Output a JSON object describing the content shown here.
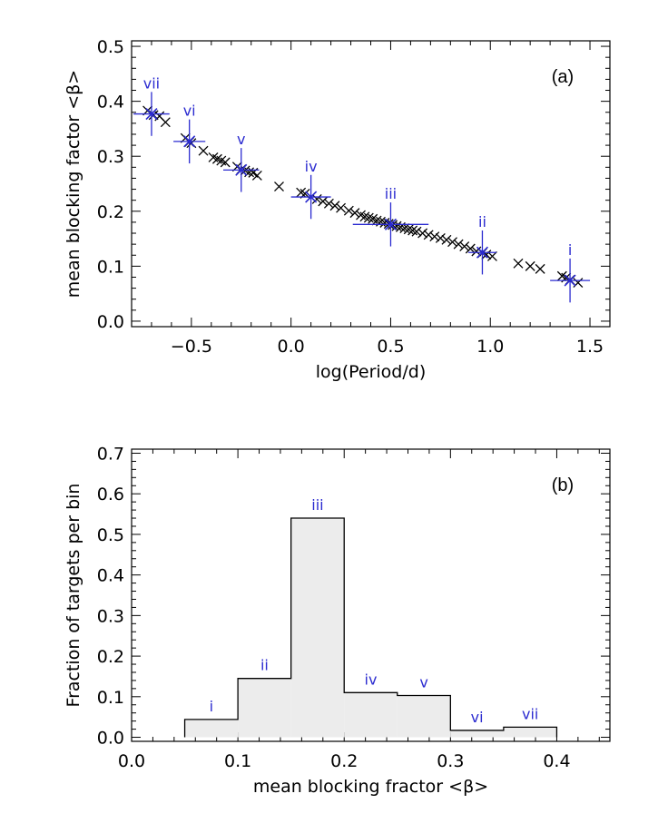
{
  "colors": {
    "annotation": "#2b2bd0",
    "points": "#000000",
    "hist_fill": "#ececec",
    "hist_edge": "#000000"
  },
  "chart_data": [
    {
      "type": "scatter",
      "panel_label": "(a)",
      "xlabel": "log(Period/d)",
      "ylabel": "mean blocking factor <β>",
      "xlim": [
        -0.8,
        1.6
      ],
      "ylim": [
        -0.01,
        0.51
      ],
      "xticks": [
        -0.5,
        0.0,
        0.5,
        1.0,
        1.5
      ],
      "xtick_labels": [
        "−0.5",
        "0.0",
        "0.5",
        "1.0",
        "1.5"
      ],
      "yticks": [
        0.0,
        0.1,
        0.2,
        0.3,
        0.4,
        0.5
      ],
      "ytick_labels": [
        "0.0",
        "0.1",
        "0.2",
        "0.3",
        "0.4",
        "0.5"
      ],
      "points": [
        [
          -0.72,
          0.383
        ],
        [
          -0.69,
          0.375
        ],
        [
          -0.66,
          0.373
        ],
        [
          -0.63,
          0.362
        ],
        [
          -0.53,
          0.333
        ],
        [
          -0.51,
          0.326
        ],
        [
          -0.5,
          0.324
        ],
        [
          -0.44,
          0.31
        ],
        [
          -0.39,
          0.298
        ],
        [
          -0.37,
          0.295
        ],
        [
          -0.35,
          0.292
        ],
        [
          -0.33,
          0.289
        ],
        [
          -0.27,
          0.281
        ],
        [
          -0.25,
          0.276
        ],
        [
          -0.23,
          0.274
        ],
        [
          -0.21,
          0.271
        ],
        [
          -0.19,
          0.27
        ],
        [
          -0.17,
          0.265
        ],
        [
          -0.06,
          0.245
        ],
        [
          0.05,
          0.234
        ],
        [
          0.07,
          0.232
        ],
        [
          0.1,
          0.226
        ],
        [
          0.13,
          0.222
        ],
        [
          0.16,
          0.218
        ],
        [
          0.19,
          0.214
        ],
        [
          0.22,
          0.21
        ],
        [
          0.25,
          0.206
        ],
        [
          0.29,
          0.201
        ],
        [
          0.32,
          0.197
        ],
        [
          0.35,
          0.193
        ],
        [
          0.37,
          0.19
        ],
        [
          0.39,
          0.188
        ],
        [
          0.41,
          0.186
        ],
        [
          0.43,
          0.183
        ],
        [
          0.45,
          0.181
        ],
        [
          0.47,
          0.179
        ],
        [
          0.49,
          0.177
        ],
        [
          0.51,
          0.175
        ],
        [
          0.53,
          0.173
        ],
        [
          0.55,
          0.171
        ],
        [
          0.57,
          0.169
        ],
        [
          0.59,
          0.167
        ],
        [
          0.61,
          0.165
        ],
        [
          0.63,
          0.163
        ],
        [
          0.66,
          0.16
        ],
        [
          0.69,
          0.157
        ],
        [
          0.72,
          0.154
        ],
        [
          0.75,
          0.151
        ],
        [
          0.78,
          0.148
        ],
        [
          0.81,
          0.144
        ],
        [
          0.84,
          0.14
        ],
        [
          0.87,
          0.136
        ],
        [
          0.9,
          0.132
        ],
        [
          0.93,
          0.127
        ],
        [
          0.96,
          0.124
        ],
        [
          0.98,
          0.121
        ],
        [
          1.01,
          0.118
        ],
        [
          1.14,
          0.105
        ],
        [
          1.2,
          0.1
        ],
        [
          1.25,
          0.095
        ],
        [
          1.36,
          0.082
        ],
        [
          1.38,
          0.079
        ],
        [
          1.4,
          0.075
        ],
        [
          1.44,
          0.07
        ]
      ],
      "bin_markers": [
        {
          "label": "vii",
          "x": -0.7,
          "y": 0.377,
          "xerr": 0.09,
          "yerr": 0.04
        },
        {
          "label": "vi",
          "x": -0.51,
          "y": 0.327,
          "xerr": 0.08,
          "yerr": 0.04
        },
        {
          "label": "v",
          "x": -0.25,
          "y": 0.275,
          "xerr": 0.09,
          "yerr": 0.04
        },
        {
          "label": "iv",
          "x": 0.1,
          "y": 0.226,
          "xerr": 0.1,
          "yerr": 0.04
        },
        {
          "label": "iii",
          "x": 0.5,
          "y": 0.176,
          "xerr": 0.19,
          "yerr": 0.04
        },
        {
          "label": "ii",
          "x": 0.96,
          "y": 0.125,
          "xerr": 0.07,
          "yerr": 0.04
        },
        {
          "label": "i",
          "x": 1.4,
          "y": 0.074,
          "xerr": 0.1,
          "yerr": 0.04
        }
      ]
    },
    {
      "type": "bar",
      "subtype": "step-histogram",
      "panel_label": "(b)",
      "xlabel": "mean blocking fractor <β>",
      "ylabel": "Fraction of targets per bin",
      "xlim": [
        0.0,
        0.45
      ],
      "ylim": [
        -0.01,
        0.71
      ],
      "xticks": [
        0.0,
        0.1,
        0.2,
        0.3,
        0.4
      ],
      "xtick_labels": [
        "0.0",
        "0.1",
        "0.2",
        "0.3",
        "0.4"
      ],
      "yticks": [
        0.0,
        0.1,
        0.2,
        0.3,
        0.4,
        0.5,
        0.6,
        0.7
      ],
      "ytick_labels": [
        "0.0",
        "0.1",
        "0.2",
        "0.3",
        "0.4",
        "0.5",
        "0.6",
        "0.7"
      ],
      "bin_edges": [
        0.05,
        0.1,
        0.15,
        0.2,
        0.25,
        0.3,
        0.35,
        0.4
      ],
      "values": [
        0.044,
        0.145,
        0.54,
        0.11,
        0.103,
        0.017,
        0.025
      ],
      "bin_labels": [
        "i",
        "ii",
        "iii",
        "iv",
        "v",
        "vi",
        "vii"
      ]
    }
  ]
}
